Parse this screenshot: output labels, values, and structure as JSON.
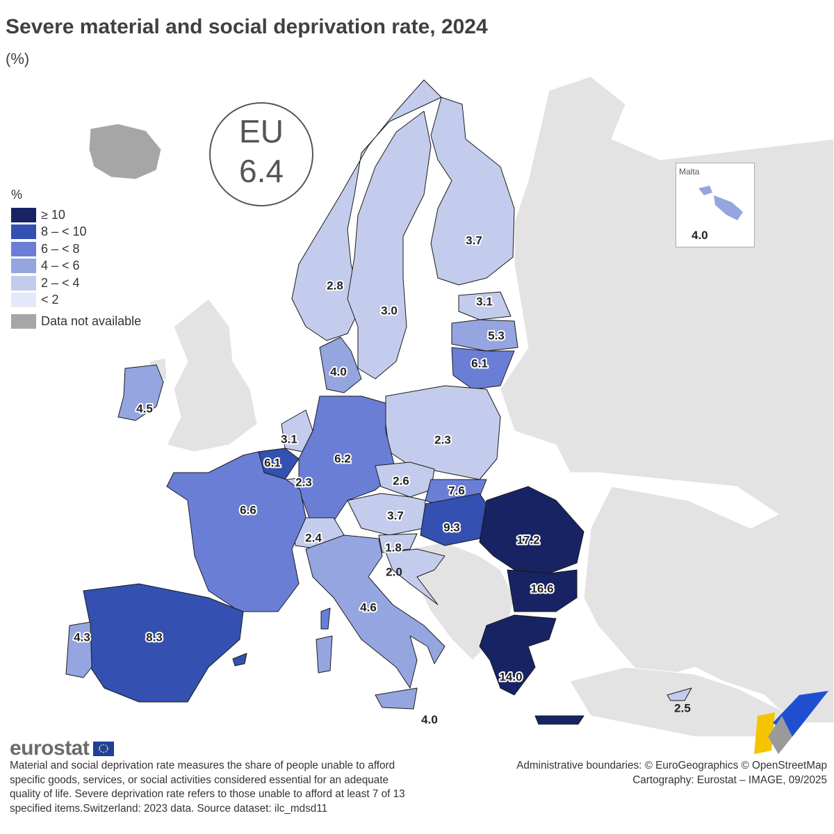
{
  "title": "Severe material and social deprivation rate, 2024",
  "unit": "(%)",
  "eu_badge": {
    "line1": "EU",
    "line2": "6.4"
  },
  "legend": {
    "title": "%",
    "classes": [
      {
        "label": "≥ 10",
        "color": "#172363"
      },
      {
        "label": "8 – < 10",
        "color": "#3450b0"
      },
      {
        "label": "6 – < 8",
        "color": "#6a7ed6"
      },
      {
        "label": "4 – < 6",
        "color": "#95a5e0"
      },
      {
        "label": "2 – < 4",
        "color": "#c4cced"
      },
      {
        "label": "< 2",
        "color": "#e5e8f8"
      }
    ],
    "na": {
      "label": "Data not available",
      "color": "#a6a6a6"
    }
  },
  "background_color": "#e3e3e3",
  "malta": {
    "label": "Malta",
    "value": "4.0"
  },
  "chart_data": {
    "type": "choropleth",
    "regions": [
      {
        "name": "Romania",
        "value": 17.2,
        "label": "17.2"
      },
      {
        "name": "Bulgaria",
        "value": 16.6,
        "label": "16.6"
      },
      {
        "name": "Greece",
        "value": 14.0,
        "label": "14.0"
      },
      {
        "name": "Hungary",
        "value": 9.3,
        "label": "9.3"
      },
      {
        "name": "Spain",
        "value": 8.3,
        "label": "8.3"
      },
      {
        "name": "Slovakia",
        "value": 7.6,
        "label": "7.6"
      },
      {
        "name": "France",
        "value": 6.6,
        "label": "6.6"
      },
      {
        "name": "Germany",
        "value": 6.2,
        "label": "6.2"
      },
      {
        "name": "Lithuania",
        "value": 6.1,
        "label": "6.1"
      },
      {
        "name": "Belgium",
        "value": 6.1,
        "label": "6.1"
      },
      {
        "name": "Latvia",
        "value": 5.3,
        "label": "5.3"
      },
      {
        "name": "Italy",
        "value": 4.6,
        "label": "4.6"
      },
      {
        "name": "Ireland",
        "value": 4.5,
        "label": "4.5"
      },
      {
        "name": "Portugal",
        "value": 4.3,
        "label": "4.3"
      },
      {
        "name": "Denmark",
        "value": 4.0,
        "label": "4.0"
      },
      {
        "name": "Malta",
        "value": 4.0,
        "label": "4.0"
      },
      {
        "name": "Finland",
        "value": 3.7,
        "label": "3.7"
      },
      {
        "name": "Austria",
        "value": 3.7,
        "label": "3.7"
      },
      {
        "name": "Netherlands",
        "value": 3.1,
        "label": "3.1"
      },
      {
        "name": "Estonia",
        "value": 3.1,
        "label": "3.1"
      },
      {
        "name": "Sweden",
        "value": 3.0,
        "label": "3.0"
      },
      {
        "name": "Norway",
        "value": 2.8,
        "label": "2.8"
      },
      {
        "name": "Czechia",
        "value": 2.6,
        "label": "2.6"
      },
      {
        "name": "Cyprus",
        "value": 2.5,
        "label": "2.5"
      },
      {
        "name": "Switzerland",
        "value": 2.4,
        "label": "2.4"
      },
      {
        "name": "Poland",
        "value": 2.3,
        "label": "2.3"
      },
      {
        "name": "Luxembourg",
        "value": 2.3,
        "label": "2.3"
      },
      {
        "name": "Croatia",
        "value": 2.0,
        "label": "2.0"
      },
      {
        "name": "Slovenia",
        "value": 1.8,
        "label": "1.8"
      },
      {
        "name": "Iceland",
        "value": null,
        "label": ""
      },
      {
        "name": "United Kingdom",
        "value": null,
        "label": ""
      }
    ]
  },
  "footer": {
    "logo": "eurostat",
    "note": "Material and social deprivation rate measures the share of people unable to afford specific goods, services, or social activities considered essential for an adequate quality of life. Severe deprivation rate refers to those unable to afford at least 7 of 13 specified items.Switzerland: 2023 data. Source dataset: ilc_mdsd11",
    "credits_line1": "Administrative boundaries: © EuroGeographics © OpenStreetMap",
    "credits_line2": "Cartography: Eurostat – IMAGE, 09/2025"
  }
}
